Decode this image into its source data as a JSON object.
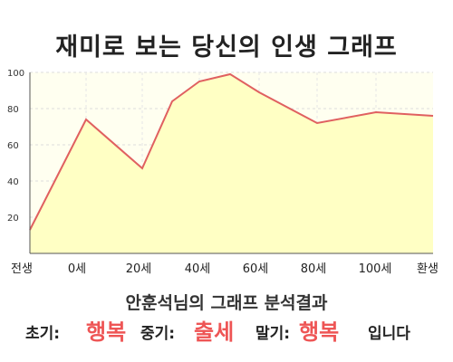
{
  "title": "재미로 보는 당신의 인생 그래프",
  "subtitle": "안훈석님의 그래프 분석결과",
  "result": {
    "early_label": "초기:",
    "early_value": "행복",
    "middle_label": "중기:",
    "middle_value": "출세",
    "late_label": "말기:",
    "late_value": "행복",
    "ending": "입니다"
  },
  "colors": {
    "line": "#e06060",
    "fill": "#ffffc4",
    "emphasis": "#ee5555"
  },
  "chart_data": {
    "type": "area",
    "title": "재미로 보는 당신의 인생 그래프",
    "xlabel": "",
    "ylabel": "",
    "x_tick_labels": [
      "전생",
      "0세",
      "20세",
      "40세",
      "60세",
      "80세",
      "100세",
      "환생"
    ],
    "y_ticks": [
      20,
      40,
      60,
      80,
      100
    ],
    "ylim": [
      0,
      100
    ],
    "grid": true,
    "x": [
      "전생",
      "0세",
      "20세",
      "30세",
      "40세",
      "50세",
      "60세",
      "80세",
      "100세",
      "환생"
    ],
    "values": [
      13,
      74,
      47,
      84,
      95,
      99,
      89,
      72,
      78,
      76
    ]
  }
}
